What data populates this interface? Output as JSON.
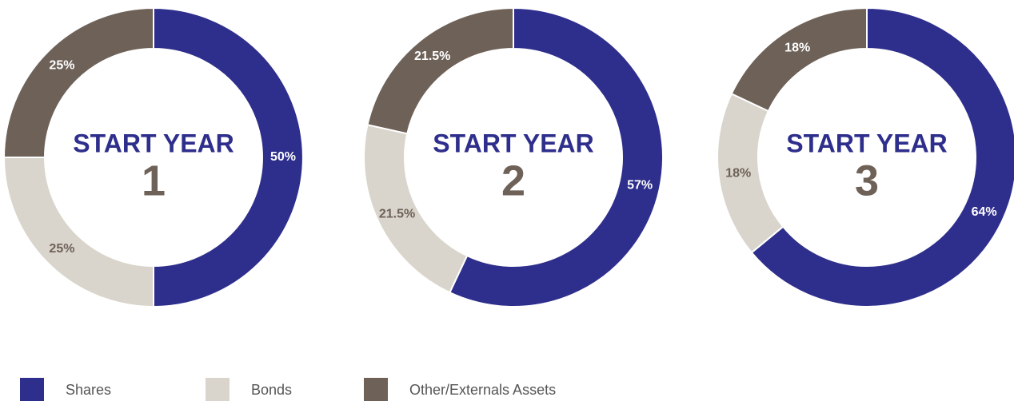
{
  "chart_data": [
    {
      "type": "pie",
      "center_label": "START YEAR",
      "center_number": "1",
      "categories": [
        "Shares",
        "Bonds",
        "Other/Externals Assets"
      ],
      "values": [
        50,
        25,
        25
      ],
      "value_labels": [
        "50%",
        "25%",
        "25%"
      ],
      "colors": [
        "#2e2e8c",
        "#d9d5cc",
        "#6e6158"
      ]
    },
    {
      "type": "pie",
      "center_label": "START YEAR",
      "center_number": "2",
      "categories": [
        "Shares",
        "Bonds",
        "Other/Externals Assets"
      ],
      "values": [
        57,
        21.5,
        21.5
      ],
      "value_labels": [
        "57%",
        "21.5%",
        "21.5%"
      ],
      "colors": [
        "#2e2e8c",
        "#d9d5cc",
        "#6e6158"
      ]
    },
    {
      "type": "pie",
      "center_label": "START YEAR",
      "center_number": "3",
      "categories": [
        "Shares",
        "Bonds",
        "Other/Externals Assets"
      ],
      "values": [
        64,
        18,
        18
      ],
      "value_labels": [
        "64%",
        "18%",
        "18%"
      ],
      "colors": [
        "#2e2e8c",
        "#d9d5cc",
        "#6e6158"
      ]
    }
  ]
}
